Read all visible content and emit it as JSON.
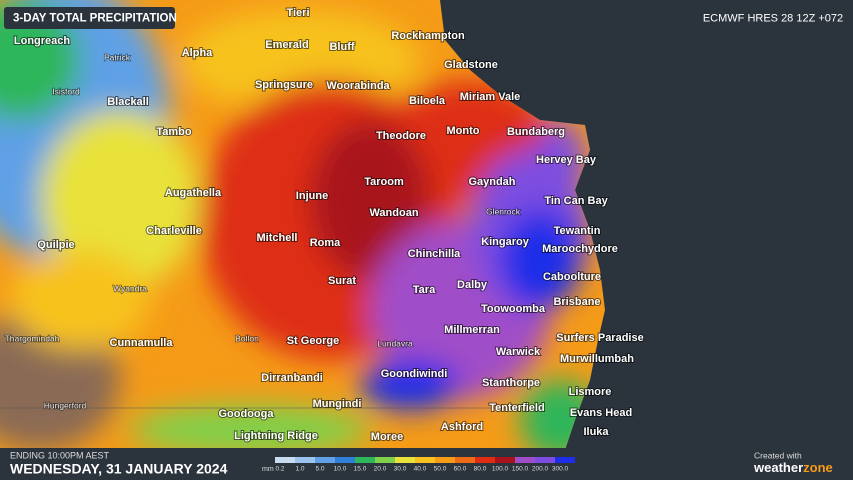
{
  "header": {
    "title": "3-DAY TOTAL PRECIPITATION",
    "model": "ECMWF HRES 28 12Z +072"
  },
  "towns": [
    "Tieri",
    "Longreach",
    "Emerald",
    "Bluff",
    "Rockhampton",
    "Alpha",
    "Patrick",
    "Gladstone",
    "Isisford",
    "Springsure",
    "Woorabinda",
    "Biloela",
    "Miriam Vale",
    "Blackall",
    "Tambo",
    "Theodore",
    "Monto",
    "Bundaberg",
    "Hervey Bay",
    "Augathella",
    "Taroom",
    "Gayndah",
    "Injune",
    "Glenrock",
    "Tin Can Bay",
    "Wandoan",
    "Tewantin",
    "Charleville",
    "Quilpie",
    "Mitchell",
    "Roma",
    "Chinchilla",
    "Kingaroy",
    "Maroochydore",
    "Caboolture",
    "Surat",
    "Tara",
    "Dalby",
    "Wyandra",
    "Toowoomba",
    "Brisbane",
    "Millmerran",
    "Thargomindah",
    "Cunnamulla",
    "Bollon",
    "St George",
    "Lundavra",
    "Surfers Paradise",
    "Warwick",
    "Murwillumbah",
    "Dirranbandi",
    "Goondiwindi",
    "Stanthorpe",
    "Lismore",
    "Mungindi",
    "Hungerford",
    "Tenterfield",
    "Evans Head",
    "Goodooga",
    "Ashford",
    "Iluka",
    "Lightning Ridge",
    "Moree"
  ],
  "legend": {
    "unit": "mm",
    "items": [
      {
        "label": "0.2",
        "color": "#c8dcf0"
      },
      {
        "label": "1.0",
        "color": "#9cc4ec"
      },
      {
        "label": "5.0",
        "color": "#5fa0e6"
      },
      {
        "label": "10.0",
        "color": "#2f7fd8"
      },
      {
        "label": "15.0",
        "color": "#2eb65a"
      },
      {
        "label": "20.0",
        "color": "#7fd04a"
      },
      {
        "label": "30.0",
        "color": "#e8e23a"
      },
      {
        "label": "40.0",
        "color": "#f7c21d"
      },
      {
        "label": "50.0",
        "color": "#f59b18"
      },
      {
        "label": "60.0",
        "color": "#ef6a16"
      },
      {
        "label": "80.0",
        "color": "#de2d12"
      },
      {
        "label": "100.0",
        "color": "#a8121a"
      },
      {
        "label": "150.0",
        "color": "#a04ec8"
      },
      {
        "label": "200.0",
        "color": "#7d4de0"
      },
      {
        "label": "300.0",
        "color": "#1e2de8"
      }
    ]
  },
  "footer": {
    "ending": "ENDING 10:00PM AEST",
    "date": "WEDNESDAY, 31 JANUARY 2024",
    "created": "Created with",
    "brand": "weather",
    "brand_accent": "zone"
  }
}
